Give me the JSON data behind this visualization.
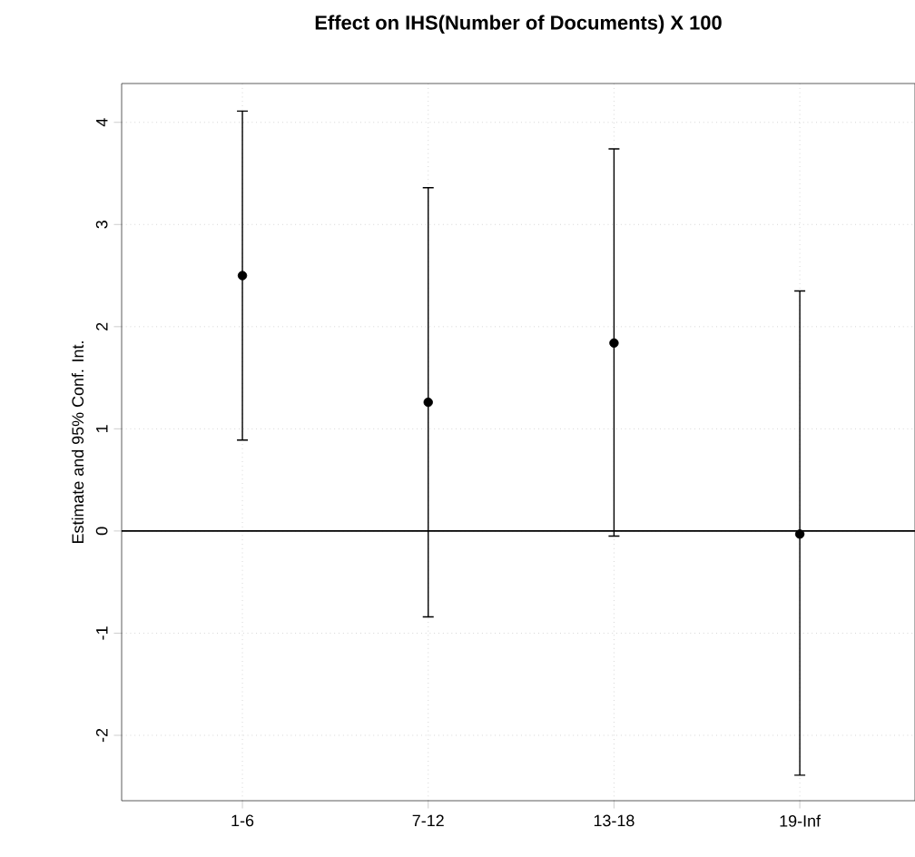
{
  "chart_data": {
    "type": "scatter",
    "title": "Effect on IHS(Number of Documents) X 100",
    "ylabel": "Estimate and 95% Conf. Int.",
    "categories": [
      "1-6",
      "7-12",
      "13-18",
      "19-Inf"
    ],
    "values": [
      2.5,
      1.26,
      1.84,
      -0.03
    ],
    "errors": [
      [
        0.89,
        4.11
      ],
      [
        -0.84,
        3.36
      ],
      [
        -0.05,
        3.74
      ],
      [
        -2.39,
        2.35
      ]
    ],
    "color": "#000000",
    "marker": "circle",
    "grid": true,
    "ylim": [
      -2.64,
      4.38
    ],
    "yticks": [
      -2,
      -1,
      0,
      1,
      2,
      3,
      4
    ],
    "ref_lines": [
      {
        "axis": "y",
        "value": 0,
        "color": "#000000",
        "line_style": "solid"
      }
    ]
  }
}
